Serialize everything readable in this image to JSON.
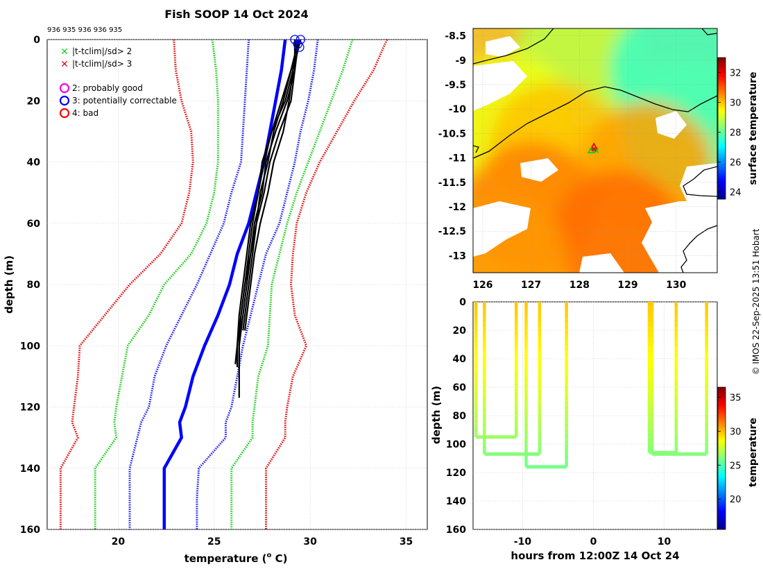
{
  "title": "Fish SOOP 14 Oct 2024",
  "header_ids": "936 935 936 936 935",
  "colors": {
    "clim_mean": "#0000ff",
    "sd1": "#2020ee",
    "sd2": "#22cc22",
    "sd3": "#dd1111",
    "profile": "#000000",
    "cross_2sd": "#22cc22",
    "cross_3sd": "#dd1111",
    "flag_2": "#ee00ee",
    "flag_3": "#0000ff",
    "flag_4": "#ff0000"
  },
  "legend": [
    {
      "id": "x2",
      "marker": "x",
      "color": "#22cc22",
      "label": "|t-tclim|/sd> 2"
    },
    {
      "id": "x3",
      "marker": "x",
      "color": "#dd1111",
      "label": "|t-tclim|/sd> 3"
    },
    {
      "id": "f2",
      "marker": "o",
      "color": "#ee00ee",
      "label": "2: probably good"
    },
    {
      "id": "f3",
      "marker": "o",
      "color": "#0000ff",
      "label": "3: potentially correctable"
    },
    {
      "id": "f4",
      "marker": "o",
      "color": "#ff0000",
      "label": "4: bad"
    }
  ],
  "chart_data": [
    {
      "id": "profile",
      "type": "line",
      "title": "Fish SOOP 14 Oct 2024",
      "xlabel": "temperature (",
      "xlabel_sup": "o",
      "xlabel_end": " C)",
      "ylabel": "depth (m)",
      "xlim": [
        16.3,
        36.1
      ],
      "ylim": [
        0,
        160
      ],
      "xticks": [
        20,
        25,
        30,
        35
      ],
      "yticks": [
        0,
        20,
        40,
        60,
        80,
        100,
        120,
        140,
        160
      ],
      "grid": true,
      "clim_depths": [
        0,
        10,
        20,
        30,
        40,
        50,
        60,
        70,
        80,
        90,
        100,
        110,
        120,
        125,
        130,
        140,
        150,
        160
      ],
      "clim_mean": [
        28.7,
        28.5,
        28.2,
        27.9,
        27.6,
        27.2,
        26.8,
        26.2,
        25.8,
        25.2,
        24.5,
        23.9,
        23.5,
        23.2,
        23.3,
        22.4,
        22.4,
        22.4
      ],
      "clim_lines": [
        {
          "name": "+1 sd",
          "color": "#2020ee",
          "values": [
            30.4,
            30.2,
            29.9,
            29.5,
            29.2,
            28.8,
            28.4,
            27.7,
            27.3,
            26.9,
            26.5,
            26.2,
            25.9,
            25.6,
            25.6,
            24.2,
            24.1,
            24.1
          ]
        },
        {
          "name": "-1 sd",
          "color": "#2020ee",
          "values": [
            26.8,
            26.7,
            26.6,
            26.5,
            26.4,
            25.9,
            25.5,
            24.8,
            24.1,
            23.3,
            22.5,
            21.9,
            21.6,
            21.2,
            21.0,
            20.6,
            20.6,
            20.6
          ]
        },
        {
          "name": "+2 sd",
          "color": "#22cc22",
          "values": [
            32.2,
            31.7,
            31.1,
            30.5,
            29.9,
            29.3,
            28.8,
            28.4,
            28.0,
            27.9,
            27.8,
            27.3,
            27.1,
            27.0,
            27.0,
            25.9,
            25.9,
            25.9
          ]
        },
        {
          "name": "-2 sd",
          "color": "#22cc22",
          "values": [
            24.9,
            25.1,
            25.2,
            25.2,
            25.2,
            25.0,
            24.6,
            23.8,
            22.4,
            21.6,
            20.5,
            20.2,
            19.9,
            19.8,
            19.9,
            18.8,
            18.8,
            18.8
          ]
        },
        {
          "name": "+3 sd",
          "color": "#dd1111",
          "values": [
            34.0,
            33.3,
            32.3,
            31.4,
            30.5,
            29.8,
            29.3,
            29.1,
            29.0,
            29.2,
            29.8,
            29.1,
            28.8,
            28.7,
            28.7,
            27.7,
            27.7,
            27.7
          ]
        },
        {
          "name": "-3 sd",
          "color": "#dd1111",
          "values": [
            22.9,
            23.0,
            23.3,
            23.8,
            23.9,
            23.7,
            23.3,
            22.2,
            20.6,
            19.3,
            18.0,
            17.9,
            17.7,
            17.6,
            17.9,
            17.0,
            17.0,
            17.0
          ]
        }
      ],
      "profiles": [
        {
          "depths": [
            0,
            5,
            10,
            20,
            30,
            40,
            50,
            60,
            70,
            80,
            90,
            95
          ],
          "temps": [
            29.3,
            29.2,
            29.2,
            29.0,
            28.4,
            27.9,
            27.6,
            27.2,
            27.0,
            26.8,
            26.6,
            26.5
          ]
        },
        {
          "depths": [
            0,
            5,
            10,
            20,
            30,
            40,
            50,
            60,
            70,
            80,
            90,
            100,
            107
          ],
          "temps": [
            29.4,
            29.3,
            29.2,
            28.8,
            28.2,
            27.7,
            27.5,
            27.1,
            26.9,
            26.7,
            26.5,
            26.3,
            26.3
          ]
        },
        {
          "depths": [
            0,
            5,
            10,
            20,
            30,
            40,
            50,
            60,
            70,
            80,
            90,
            100,
            110,
            117
          ],
          "temps": [
            29.2,
            29.2,
            29.1,
            28.7,
            28.0,
            27.6,
            27.3,
            27.0,
            26.8,
            26.6,
            26.4,
            26.3,
            26.3,
            26.3
          ]
        },
        {
          "depths": [
            0,
            5,
            10,
            20,
            30,
            40,
            50,
            60,
            70,
            80,
            90,
            95
          ],
          "temps": [
            29.5,
            29.3,
            29.1,
            28.9,
            28.6,
            28.1,
            27.8,
            27.4,
            27.1,
            26.9,
            26.7,
            26.6
          ]
        },
        {
          "depths": [
            0,
            5,
            10,
            20,
            30,
            40,
            50,
            60,
            70,
            80,
            90,
            100,
            107
          ],
          "temps": [
            29.3,
            29.3,
            29.0,
            28.6,
            28.1,
            27.8,
            27.4,
            27.2,
            26.9,
            26.6,
            26.4,
            26.2,
            26.2
          ]
        },
        {
          "depths": [
            0,
            5,
            10,
            20,
            30,
            40,
            50,
            60,
            70,
            80,
            90,
            100,
            106
          ],
          "temps": [
            29.4,
            29.2,
            29.0,
            28.5,
            28.0,
            27.5,
            27.3,
            26.9,
            26.7,
            26.5,
            26.3,
            26.2,
            26.1
          ]
        }
      ],
      "flag_markers": [
        {
          "depth": 0,
          "temp": 29.2,
          "flag": "3"
        },
        {
          "depth": 0,
          "temp": 29.5,
          "flag": "3"
        },
        {
          "depth": 1.5,
          "temp": 29.35,
          "flag": "3"
        },
        {
          "depth": 2.5,
          "temp": 29.45,
          "flag": "3"
        }
      ]
    },
    {
      "id": "map",
      "type": "heatmap",
      "xlim": [
        125.8,
        130.85
      ],
      "ylim": [
        -13.35,
        -8.35
      ],
      "xticks": [
        126,
        127,
        128,
        129,
        130
      ],
      "xtick_labels": [
        "126",
        "127",
        "128",
        "129",
        "130"
      ],
      "yticks": [
        -8.5,
        -9,
        -9.5,
        -10,
        -10.5,
        -11,
        -11.5,
        -12,
        -12.5,
        -13
      ],
      "ytick_labels": [
        "-8.5",
        "-9",
        "-9.5",
        "-10",
        "-10.5",
        "-11",
        "-11.5",
        "-12",
        "-12.5",
        "-13"
      ],
      "colorbar_label": "surface temperature",
      "clim": [
        23.5,
        33.0
      ],
      "colorbar_ticks": [
        24,
        26,
        28,
        30,
        32
      ],
      "fields": [
        {
          "lon": 128.0,
          "lat": -9.0,
          "temp": 28.8
        },
        {
          "lon": 130.0,
          "lat": -9.2,
          "temp": 27.6
        },
        {
          "lon": 130.2,
          "lat": -10.3,
          "temp": 27.8
        },
        {
          "lon": 126.5,
          "lat": -10.2,
          "temp": 29.3
        },
        {
          "lon": 127.5,
          "lat": -10.8,
          "temp": 30.0
        },
        {
          "lon": 129.4,
          "lat": -11.2,
          "temp": 30.3
        },
        {
          "lon": 127.0,
          "lat": -12.0,
          "temp": 30.6
        },
        {
          "lon": 128.8,
          "lat": -12.6,
          "temp": 30.8
        },
        {
          "lon": 126.4,
          "lat": -13.1,
          "temp": 30.4
        }
      ],
      "station_markers": [
        {
          "lon": 128.3,
          "lat": -10.78,
          "color": "#dd1111"
        },
        {
          "lon": 128.35,
          "lat": -10.85,
          "color": "#22cc22"
        },
        {
          "lon": 128.25,
          "lat": -10.85,
          "color": "#22cc22"
        },
        {
          "lon": 128.3,
          "lat": -10.82,
          "color": "#dd1111"
        }
      ]
    },
    {
      "id": "timeline",
      "type": "scatter",
      "xlabel": "hours from 12:00Z 14 Oct 24",
      "ylabel": "depth (m)",
      "xlim": [
        -17,
        17.5
      ],
      "ylim": [
        0,
        160
      ],
      "xticks": [
        -10,
        0,
        10
      ],
      "yticks": [
        0,
        20,
        40,
        60,
        80,
        100,
        120,
        140,
        160
      ],
      "colorbar_label": "temperature",
      "clim": [
        15.5,
        36.5
      ],
      "colorbar_ticks": [
        20,
        25,
        30,
        35
      ],
      "casts": [
        {
          "down_t": -16.6,
          "up_t": -10.9,
          "max_depth": 95
        },
        {
          "down_t": -15.4,
          "up_t": -7.6,
          "max_depth": 107
        },
        {
          "down_t": -9.5,
          "up_t": -3.8,
          "max_depth": 116
        },
        {
          "down_t": 7.9,
          "up_t": 11.7,
          "max_depth": 106
        },
        {
          "down_t": 8.3,
          "up_t": 16.0,
          "max_depth": 107
        }
      ]
    }
  ],
  "credit": "© IMOS 22-Sep-2025 13:51 Hobart"
}
